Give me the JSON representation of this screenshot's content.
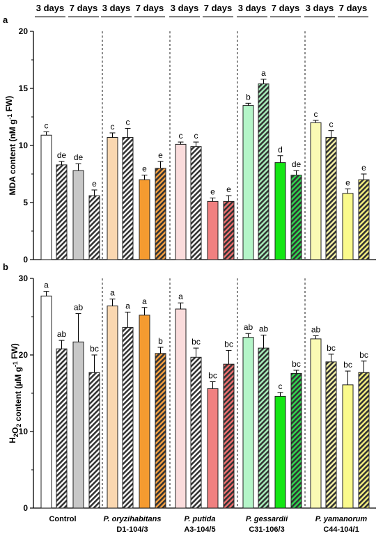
{
  "period_labels": [
    "3 days",
    "7 days",
    "3 days",
    "7 days",
    "3 days",
    "7 days",
    "3 days",
    "7 days",
    "3 days",
    "7 days"
  ],
  "groups": [
    {
      "name": "Control",
      "code": "",
      "light": "#ffffff",
      "dark": "#c8c8c8"
    },
    {
      "name": "P. oryzihabitans",
      "code": "D1-104/3",
      "light": "#fad7b0",
      "dark": "#f59b30"
    },
    {
      "name": "P. putida",
      "code": "A3-104/5",
      "light": "#fadcdc",
      "dark": "#f08080"
    },
    {
      "name": "P. gessardii",
      "code": "C31-106/3",
      "light": "#b4f5c8",
      "dark": "#14e614"
    },
    {
      "name": "P. yamanorum",
      "code": "C44-104/1",
      "light": "#fafab4",
      "dark": "#fafa8c"
    }
  ],
  "chart_data": [
    {
      "type": "bar",
      "panel": "a",
      "ylabel": "MDA content (nM g-1 FW)",
      "ylim": [
        0,
        20
      ],
      "yticks": [
        0,
        5,
        10,
        15,
        20
      ],
      "bar_order": [
        "3 days",
        "3 days hatched",
        "7 days",
        "7 days hatched"
      ],
      "values": [
        [
          10.9,
          8.3,
          7.8,
          5.6
        ],
        [
          10.7,
          10.7,
          7.0,
          8.0
        ],
        [
          10.1,
          9.9,
          5.1,
          5.1
        ],
        [
          13.5,
          15.4,
          8.5,
          7.4
        ],
        [
          12.0,
          10.7,
          5.8,
          7.0
        ]
      ],
      "errors": [
        [
          0.3,
          0.3,
          0.6,
          0.5
        ],
        [
          0.4,
          0.8,
          0.4,
          0.6
        ],
        [
          0.2,
          0.4,
          0.3,
          0.5
        ],
        [
          0.2,
          0.4,
          0.6,
          0.4
        ],
        [
          0.2,
          0.6,
          0.4,
          0.5
        ]
      ],
      "labels": [
        [
          "c",
          "de",
          "de",
          "e"
        ],
        [
          "c",
          "c",
          "e",
          "e"
        ],
        [
          "c",
          "c",
          "e",
          "e"
        ],
        [
          "b",
          "a",
          "d",
          "de"
        ],
        [
          "c",
          "c",
          "e",
          "e"
        ]
      ]
    },
    {
      "type": "bar",
      "panel": "b",
      "ylabel": "H2O2 content (µM g-1 FW)",
      "ylim": [
        0,
        30
      ],
      "yticks": [
        0,
        10,
        20,
        30
      ],
      "bar_order": [
        "3 days",
        "3 days hatched",
        "7 days",
        "7 days hatched"
      ],
      "values": [
        [
          27.7,
          20.8,
          21.7,
          17.7
        ],
        [
          26.4,
          23.6,
          25.2,
          20.2
        ],
        [
          26.0,
          19.7,
          15.6,
          18.8
        ],
        [
          22.3,
          20.9,
          14.6,
          17.6
        ],
        [
          22.1,
          19.1,
          16.1,
          17.7
        ]
      ],
      "errors": [
        [
          0.6,
          1.1,
          3.7,
          2.3
        ],
        [
          0.9,
          2.0,
          1.0,
          0.8
        ],
        [
          0.8,
          1.2,
          0.9,
          1.8
        ],
        [
          0.5,
          1.7,
          0.5,
          0.4
        ],
        [
          0.4,
          1.0,
          1.8,
          1.5
        ]
      ],
      "labels": [
        [
          "a",
          "ab",
          "ab",
          "bc"
        ],
        [
          "a",
          "a",
          "a",
          "b"
        ],
        [
          "a",
          "bc",
          "bc",
          "bc"
        ],
        [
          "ab",
          "ab",
          "c",
          "bc"
        ],
        [
          "ab",
          "bc",
          "bc",
          "bc"
        ]
      ]
    }
  ]
}
